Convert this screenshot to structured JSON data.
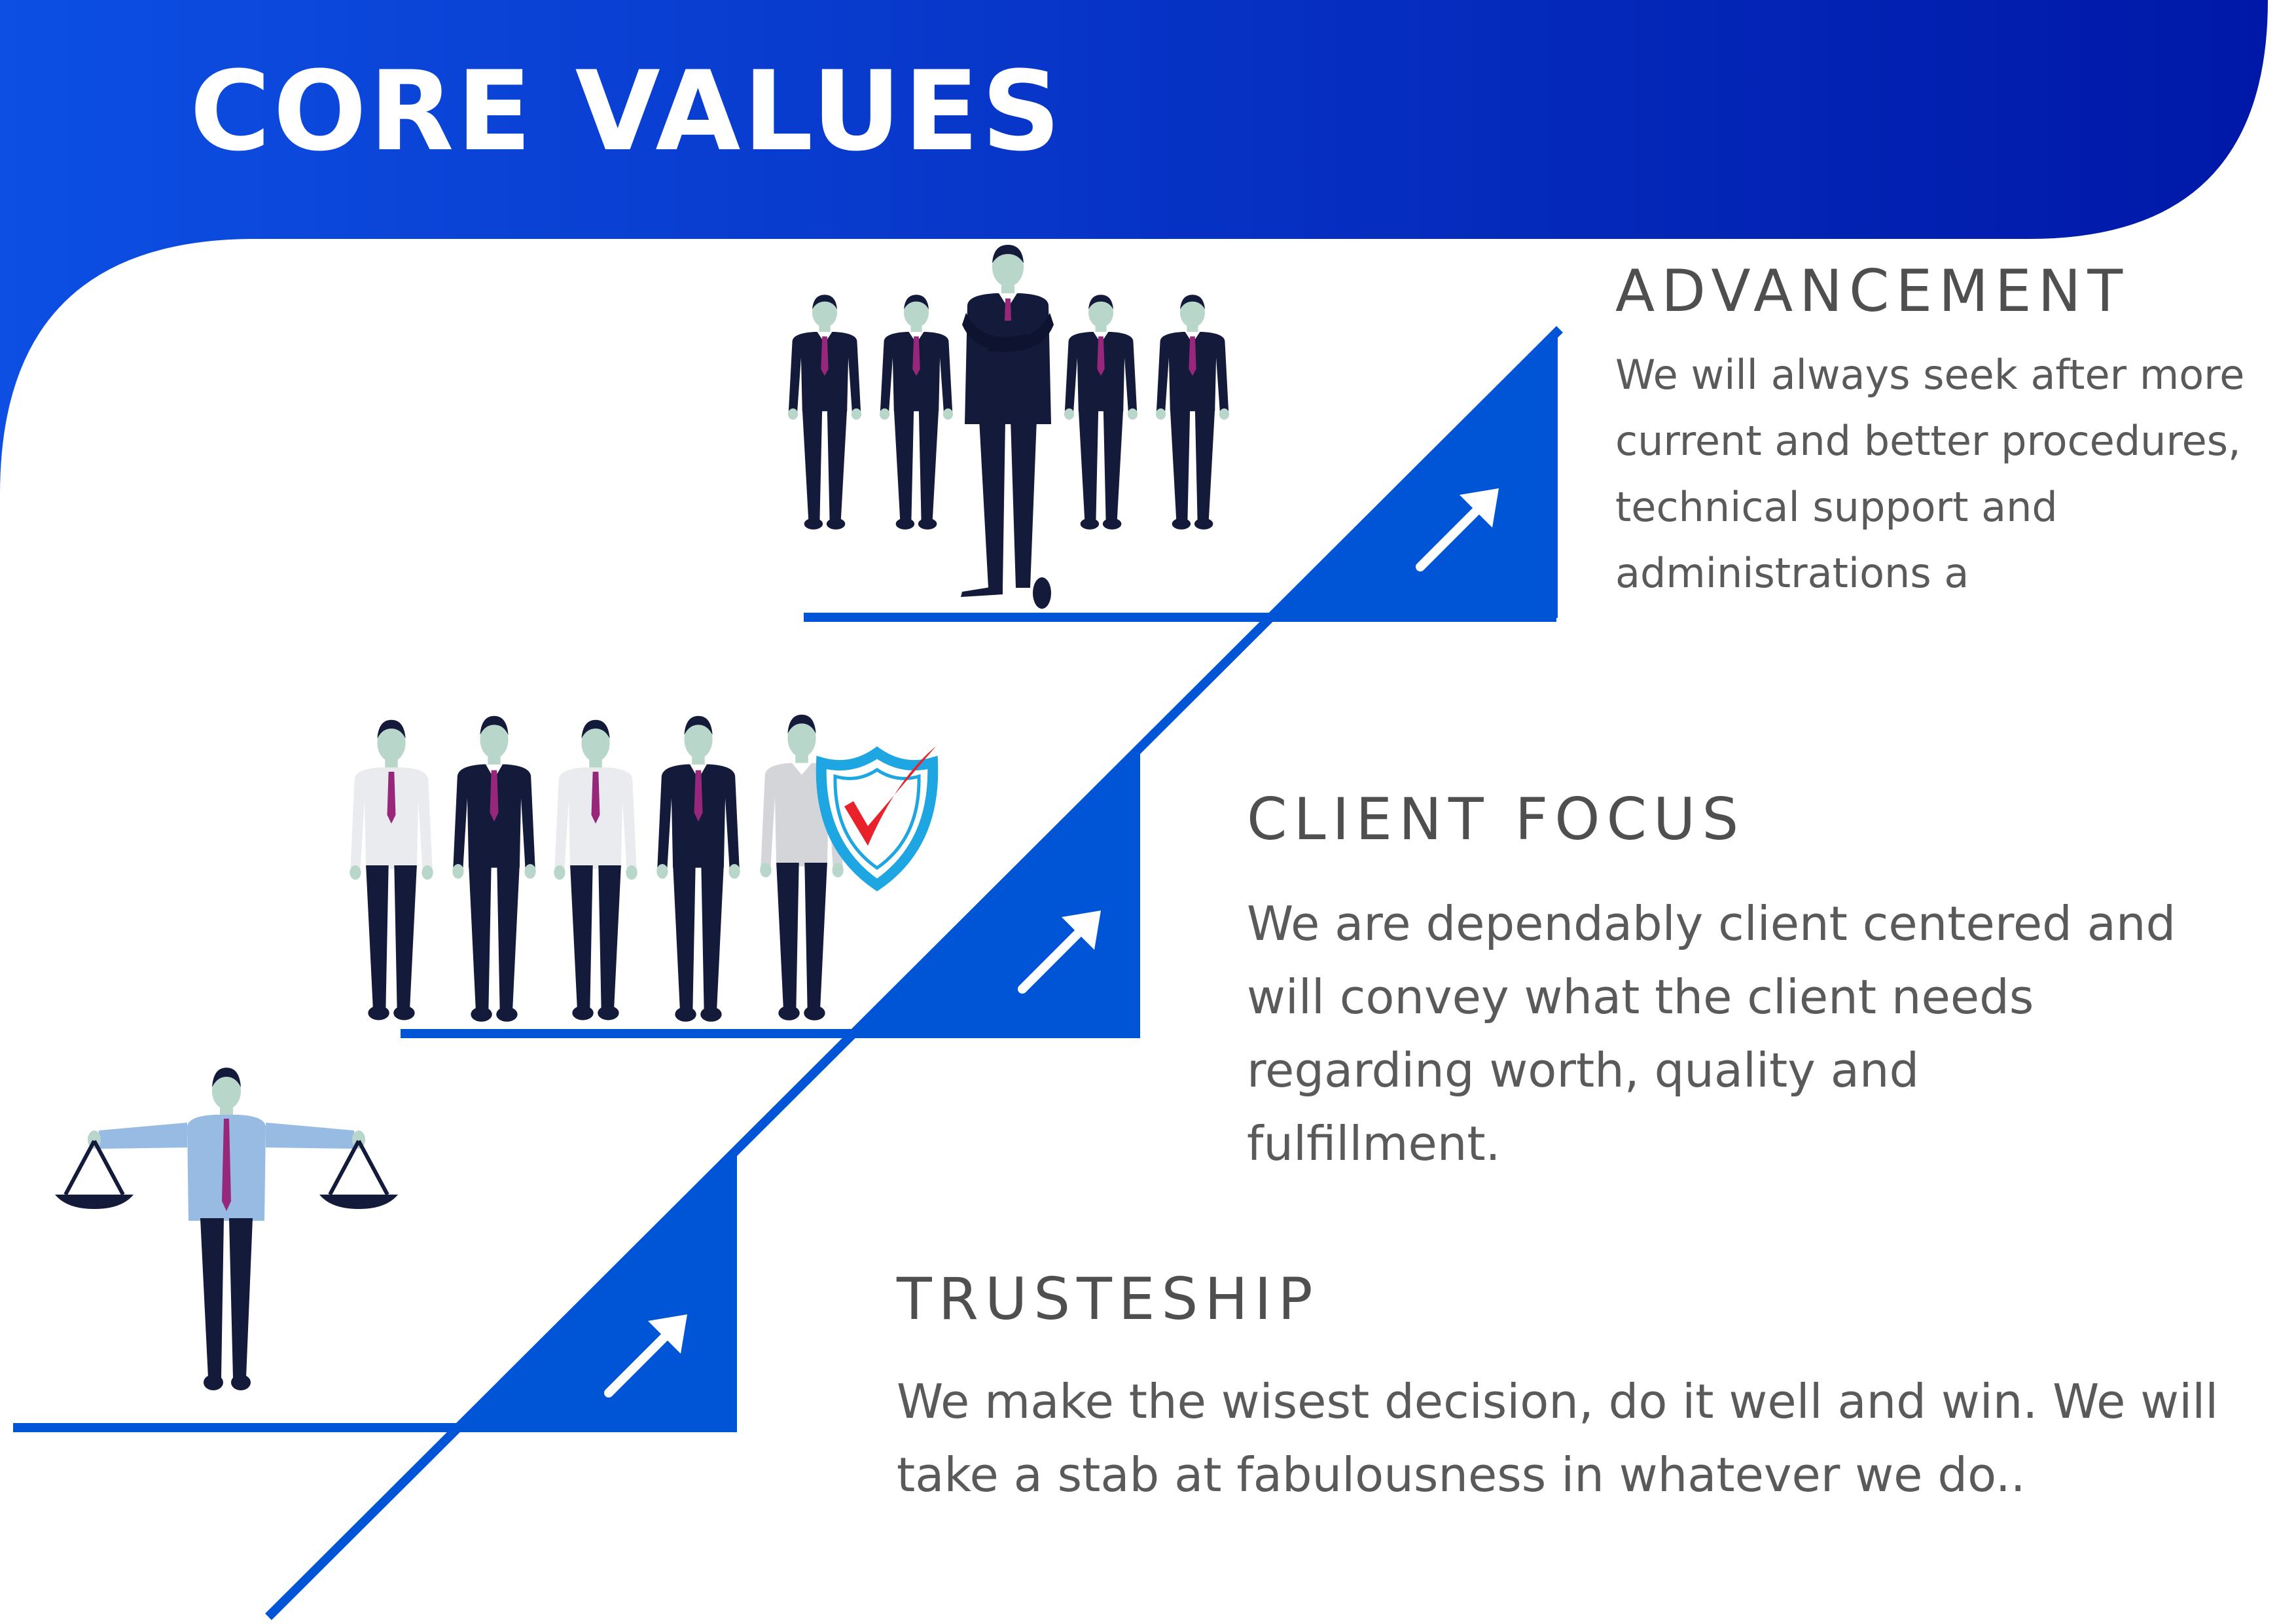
{
  "header": {
    "title": "CORE VALUES"
  },
  "values": [
    {
      "title": "ADVANCEMENT",
      "description": "We will always seek after more current and better procedures, technical support and administrations a"
    },
    {
      "title": "CLIENT FOCUS",
      "description": "We are dependably client centered and will convey what the client needs regarding worth, quality and fulfillment."
    },
    {
      "title": "TRUSTESHIP",
      "description": "We make the wisest decision, do it well and win. We will take a stab at fabulousness in whatever we do.."
    }
  ],
  "icons": [
    "group-leader-icon",
    "team-icon",
    "shield-check-icon",
    "justice-scales-icon",
    "arrow-up-right-icon"
  ],
  "colors": {
    "gradient_start": "#0d4fe3",
    "gradient_end": "#0018a8",
    "step_blue": "#0055d6",
    "suit_navy": "#141a3a",
    "skin": "#b9d6cb",
    "tie": "#96277a",
    "shield_blue": "#1ea6e2",
    "check_red": "#e8212b",
    "text_gray": "#555555"
  }
}
